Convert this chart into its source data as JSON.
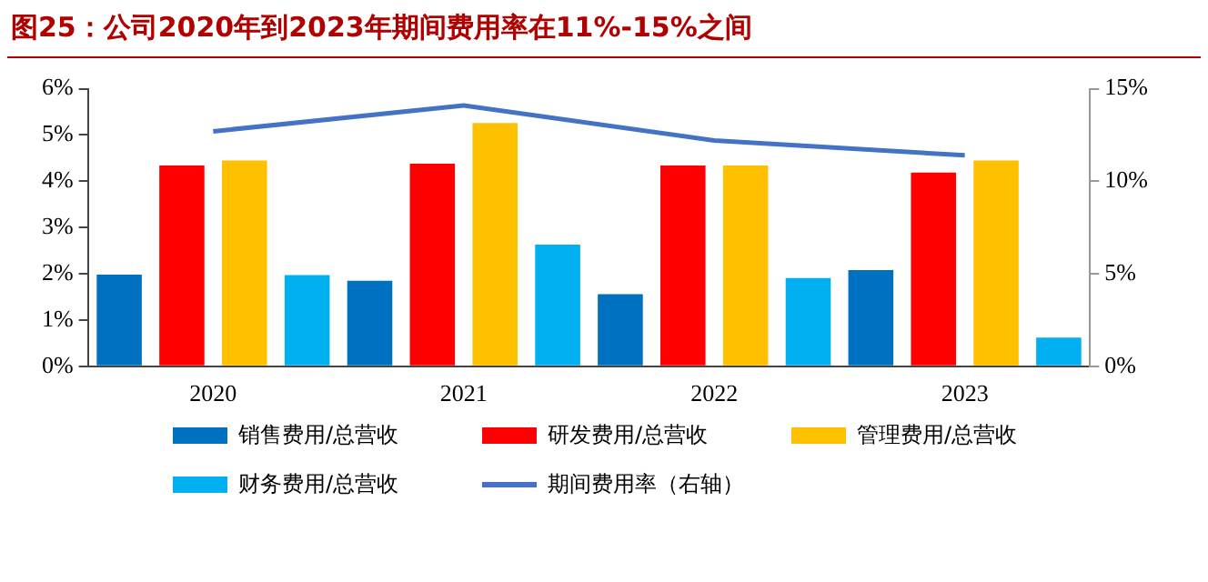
{
  "chart_data": {
    "type": "bar",
    "title": "图25：公司2020年到2023年期间费用率在11%-15%之间",
    "categories": [
      "2020",
      "2021",
      "2022",
      "2023"
    ],
    "series": [
      {
        "name": "销售费用/总营收",
        "color": "#0070c0",
        "values": [
          1.98,
          1.85,
          1.56,
          2.08
        ]
      },
      {
        "name": "研发费用/总营收",
        "color": "#ff0000",
        "values": [
          4.34,
          4.38,
          4.34,
          4.19
        ]
      },
      {
        "name": "管理费用/总营收",
        "color": "#ffc000",
        "values": [
          4.45,
          5.26,
          4.34,
          4.45
        ]
      },
      {
        "name": "财务费用/总营收",
        "color": "#00b0f0",
        "values": [
          1.97,
          2.63,
          1.91,
          0.62
        ]
      },
      {
        "name": "期间费用率（右轴）",
        "type": "line",
        "axis": "y2",
        "color": "#4472c4",
        "values": [
          12.7,
          14.1,
          12.2,
          11.4
        ]
      }
    ],
    "ylim": [
      0,
      6
    ],
    "yticks": [
      {
        "value": 0,
        "label": "0%"
      },
      {
        "value": 1,
        "label": "1%"
      },
      {
        "value": 2,
        "label": "2%"
      },
      {
        "value": 3,
        "label": "3%"
      },
      {
        "value": 4,
        "label": "4%"
      },
      {
        "value": 5,
        "label": "5%"
      },
      {
        "value": 6,
        "label": "6%"
      }
    ],
    "y2lim": [
      0,
      15
    ],
    "y2ticks": [
      {
        "value": 0,
        "label": "0%"
      },
      {
        "value": 5,
        "label": "5%"
      },
      {
        "value": 10,
        "label": "10%"
      },
      {
        "value": 15,
        "label": "15%"
      }
    ],
    "grid": false,
    "legend": "bottom",
    "marker": "none"
  }
}
